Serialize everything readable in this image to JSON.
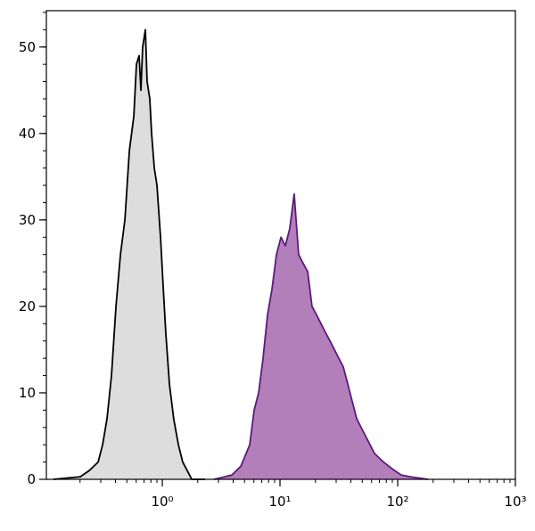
{
  "chart_data": {
    "type": "histogram-overlay",
    "xscale": "log",
    "xlim": [
      0.1035,
      1000
    ],
    "xticks": [
      {
        "value": 1,
        "label": "10⁰"
      },
      {
        "value": 10,
        "label": "10¹"
      },
      {
        "value": 100,
        "label": "10²"
      },
      {
        "value": 1000,
        "label": "10³"
      }
    ],
    "ylim": [
      0,
      54.2
    ],
    "yticks": [
      0,
      10,
      20,
      30,
      40,
      50
    ],
    "series": [
      {
        "color": "#000000",
        "fill": "#dddddd",
        "x": [
          0.119,
          0.201,
          0.239,
          0.285,
          0.311,
          0.339,
          0.37,
          0.404,
          0.441,
          0.481,
          0.525,
          0.573,
          0.603,
          0.635,
          0.658,
          0.681,
          0.718,
          0.743,
          0.783,
          0.811,
          0.855,
          0.901,
          0.966,
          1.02,
          1.07,
          1.15,
          1.25,
          1.37,
          1.49,
          1.63,
          1.78,
          2.31
        ],
        "values": [
          0,
          0.3,
          1,
          2,
          4,
          7,
          12,
          20,
          26,
          30,
          38,
          42,
          48,
          49,
          45,
          50,
          52,
          46,
          44,
          40,
          36,
          34,
          28,
          22,
          17,
          11,
          7,
          4,
          2,
          1,
          0,
          0
        ]
      },
      {
        "color": "#5c1a7a",
        "fill": "#b27fba",
        "x": [
          2.75,
          3.9,
          4.64,
          5.53,
          6.03,
          6.58,
          7.18,
          7.83,
          8.55,
          9.33,
          10.2,
          11.1,
          12.1,
          13.2,
          14.4,
          15.7,
          17.2,
          18.7,
          20.5,
          22.3,
          24.3,
          26.6,
          29.0,
          31.6,
          34.5,
          37.7,
          41.1,
          44.9,
          48.9,
          53.4,
          58.2,
          63.5,
          69.3,
          75.7,
          90.1,
          107,
          128,
          181
        ],
        "values": [
          0,
          0.5,
          1.5,
          4,
          8,
          10,
          14,
          19,
          22,
          26,
          28,
          27,
          29,
          33,
          26,
          25,
          24,
          20,
          19,
          18,
          17,
          16,
          15,
          14,
          13,
          11,
          9,
          7,
          6,
          5,
          4,
          3,
          2.5,
          2,
          1.2,
          0.5,
          0.3,
          0
        ]
      }
    ]
  }
}
